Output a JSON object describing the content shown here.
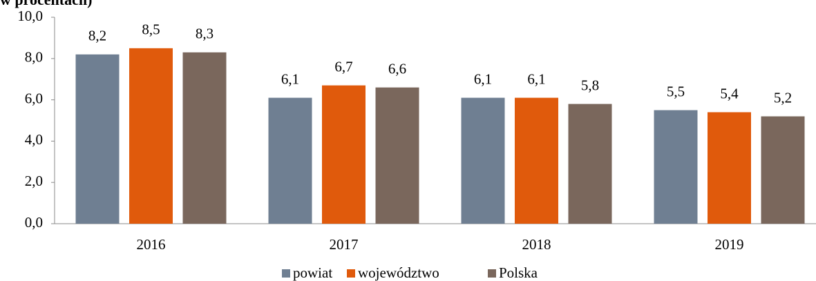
{
  "chart_data": {
    "type": "bar",
    "title": "w procentach)",
    "categories": [
      "2016",
      "2017",
      "2018",
      "2019"
    ],
    "series": [
      {
        "name": "powiat",
        "color": "#6f7f92",
        "values": [
          8.2,
          6.1,
          6.1,
          5.5
        ],
        "value_labels": [
          "8,2",
          "6,1",
          "6,1",
          "5,5"
        ]
      },
      {
        "name": "województwo",
        "color": "#e05a0c",
        "values": [
          8.5,
          6.7,
          6.1,
          5.4
        ],
        "value_labels": [
          "8,5",
          "6,7",
          "6,1",
          "5,4"
        ]
      },
      {
        "name": "Polska",
        "color": "#7a675c",
        "values": [
          8.3,
          6.6,
          5.8,
          5.2
        ],
        "value_labels": [
          "8,3",
          "6,6",
          "5,8",
          "5,2"
        ]
      }
    ],
    "ylim": [
      0,
      10
    ],
    "yticks": [
      {
        "value": 0,
        "label": "0,0"
      },
      {
        "value": 2,
        "label": "2,0"
      },
      {
        "value": 4,
        "label": "4,0"
      },
      {
        "value": 6,
        "label": "6,0"
      },
      {
        "value": 8,
        "label": "8,0"
      },
      {
        "value": 10,
        "label": "10,0"
      }
    ],
    "legend": "bottom"
  }
}
